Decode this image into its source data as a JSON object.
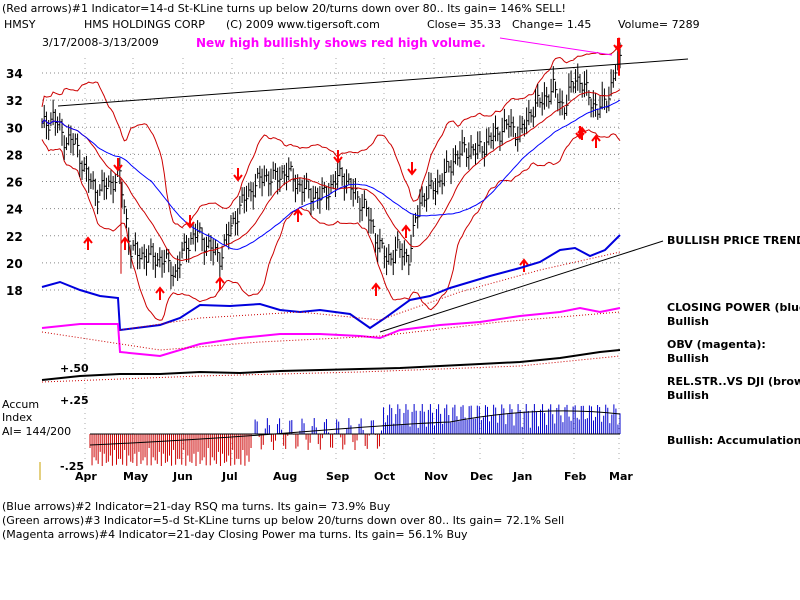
{
  "header": {
    "line1": "(Red arrows)#1 Indicator=14-d St-KLine turns up below 20/turns down over 80..  Its gain= 146% SELL!",
    "symbol": "HMSY",
    "company": "HMS HOLDINGS CORP",
    "copyright": "(C) 2009 www.tigersoft.com",
    "close": "Close=   35.33",
    "change": "Change=  1.45",
    "volume": "Volume= 7289",
    "daterange": "3/17/2008-3/13/2009"
  },
  "annotation": "New high bullishly shows red high volume.",
  "right_labels": {
    "trend": "BULLISH PRICE TREND",
    "cp_title": "CLOSING POWER (blue)",
    "cp_value": "Bullish",
    "obv_title": "OBV (magenta):",
    "obv_value": "Bullish",
    "rel_title": "REL.STR..VS DJI (brown)",
    "rel_value": "Bullish",
    "accum_status": "Bullish: Accumulation Rising"
  },
  "accum": {
    "title1": "Accum",
    "title2": "Index",
    "value": "AI= 144/200",
    "level_top": "+.50",
    "level_mid": "+.25",
    "level_bot": "-.25"
  },
  "footer": {
    "line1": "(Blue arrows)#2 Indicator=21-day RSQ ma turns.  Its gain= 73.9% Buy",
    "line2": "(Green arrows)#3 Indicator=5-d St-KLine turns up below 20/turns down over 80..  Its gain= 72.1% Sell",
    "line3": "(Magenta arrows)#4 Indicator=21-day Closing Power ma turns.  Its gain= 56.1% Buy"
  },
  "colors": {
    "price": "#000000",
    "bollinger": "#cc0000",
    "ma": "#0000ff",
    "closing_power": "#0000dd",
    "obv": "#ff00ff",
    "rel_strength": "#000000",
    "accum_pos": "#0000cc",
    "accum_neg": "#cc0000",
    "arrows": "#ff0000"
  },
  "chart_data": {
    "type": "line",
    "title": "HMS HOLDINGS CORP",
    "y_ticks": [
      18,
      20,
      22,
      24,
      26,
      28,
      30,
      32,
      34
    ],
    "ylim": [
      17,
      35.5
    ],
    "months": [
      "Apr",
      "May",
      "Jun",
      "Jul",
      "Aug",
      "Sep",
      "Oct",
      "Nov",
      "Dec",
      "Jan",
      "Feb",
      "Mar"
    ],
    "price_weekly_close": [
      {
        "w": 0,
        "c": 30.0
      },
      {
        "w": 1,
        "c": 30.8
      },
      {
        "w": 2,
        "c": 29.2
      },
      {
        "w": 3,
        "c": 28.8
      },
      {
        "w": 4,
        "c": 26.5
      },
      {
        "w": 5,
        "c": 25.2
      },
      {
        "w": 6,
        "c": 25.8
      },
      {
        "w": 7,
        "c": 26.4
      },
      {
        "w": 8,
        "c": 20.9
      },
      {
        "w": 9,
        "c": 20.6
      },
      {
        "w": 10,
        "c": 20.4
      },
      {
        "w": 11,
        "c": 20.2
      },
      {
        "w": 12,
        "c": 19.2
      },
      {
        "w": 13,
        "c": 21.4
      },
      {
        "w": 14,
        "c": 22.2
      },
      {
        "w": 15,
        "c": 21.2
      },
      {
        "w": 16,
        "c": 20.4
      },
      {
        "w": 17,
        "c": 22.6
      },
      {
        "w": 18,
        "c": 24.4
      },
      {
        "w": 19,
        "c": 25.6
      },
      {
        "w": 20,
        "c": 26.4
      },
      {
        "w": 21,
        "c": 26.2
      },
      {
        "w": 22,
        "c": 26.8
      },
      {
        "w": 23,
        "c": 25.8
      },
      {
        "w": 24,
        "c": 25.2
      },
      {
        "w": 25,
        "c": 24.8
      },
      {
        "w": 26,
        "c": 25.6
      },
      {
        "w": 27,
        "c": 26.6
      },
      {
        "w": 28,
        "c": 25.2
      },
      {
        "w": 29,
        "c": 24.2
      },
      {
        "w": 30,
        "c": 22.0
      },
      {
        "w": 31,
        "c": 20.2
      },
      {
        "w": 32,
        "c": 21.0
      },
      {
        "w": 33,
        "c": 20.4
      },
      {
        "w": 34,
        "c": 24.6
      },
      {
        "w": 35,
        "c": 25.4
      },
      {
        "w": 36,
        "c": 26.2
      },
      {
        "w": 37,
        "c": 27.6
      },
      {
        "w": 38,
        "c": 28.4
      },
      {
        "w": 39,
        "c": 28.2
      },
      {
        "w": 40,
        "c": 28.8
      },
      {
        "w": 41,
        "c": 29.6
      },
      {
        "w": 42,
        "c": 30.2
      },
      {
        "w": 43,
        "c": 29.4
      },
      {
        "w": 44,
        "c": 31.2
      },
      {
        "w": 45,
        "c": 32.0
      },
      {
        "w": 46,
        "c": 32.8
      },
      {
        "w": 47,
        "c": 31.4
      },
      {
        "w": 48,
        "c": 33.8
      },
      {
        "w": 49,
        "c": 32.6
      },
      {
        "w": 50,
        "c": 31.2
      },
      {
        "w": 51,
        "c": 32.4
      },
      {
        "w": 52,
        "c": 35.3
      }
    ]
  }
}
